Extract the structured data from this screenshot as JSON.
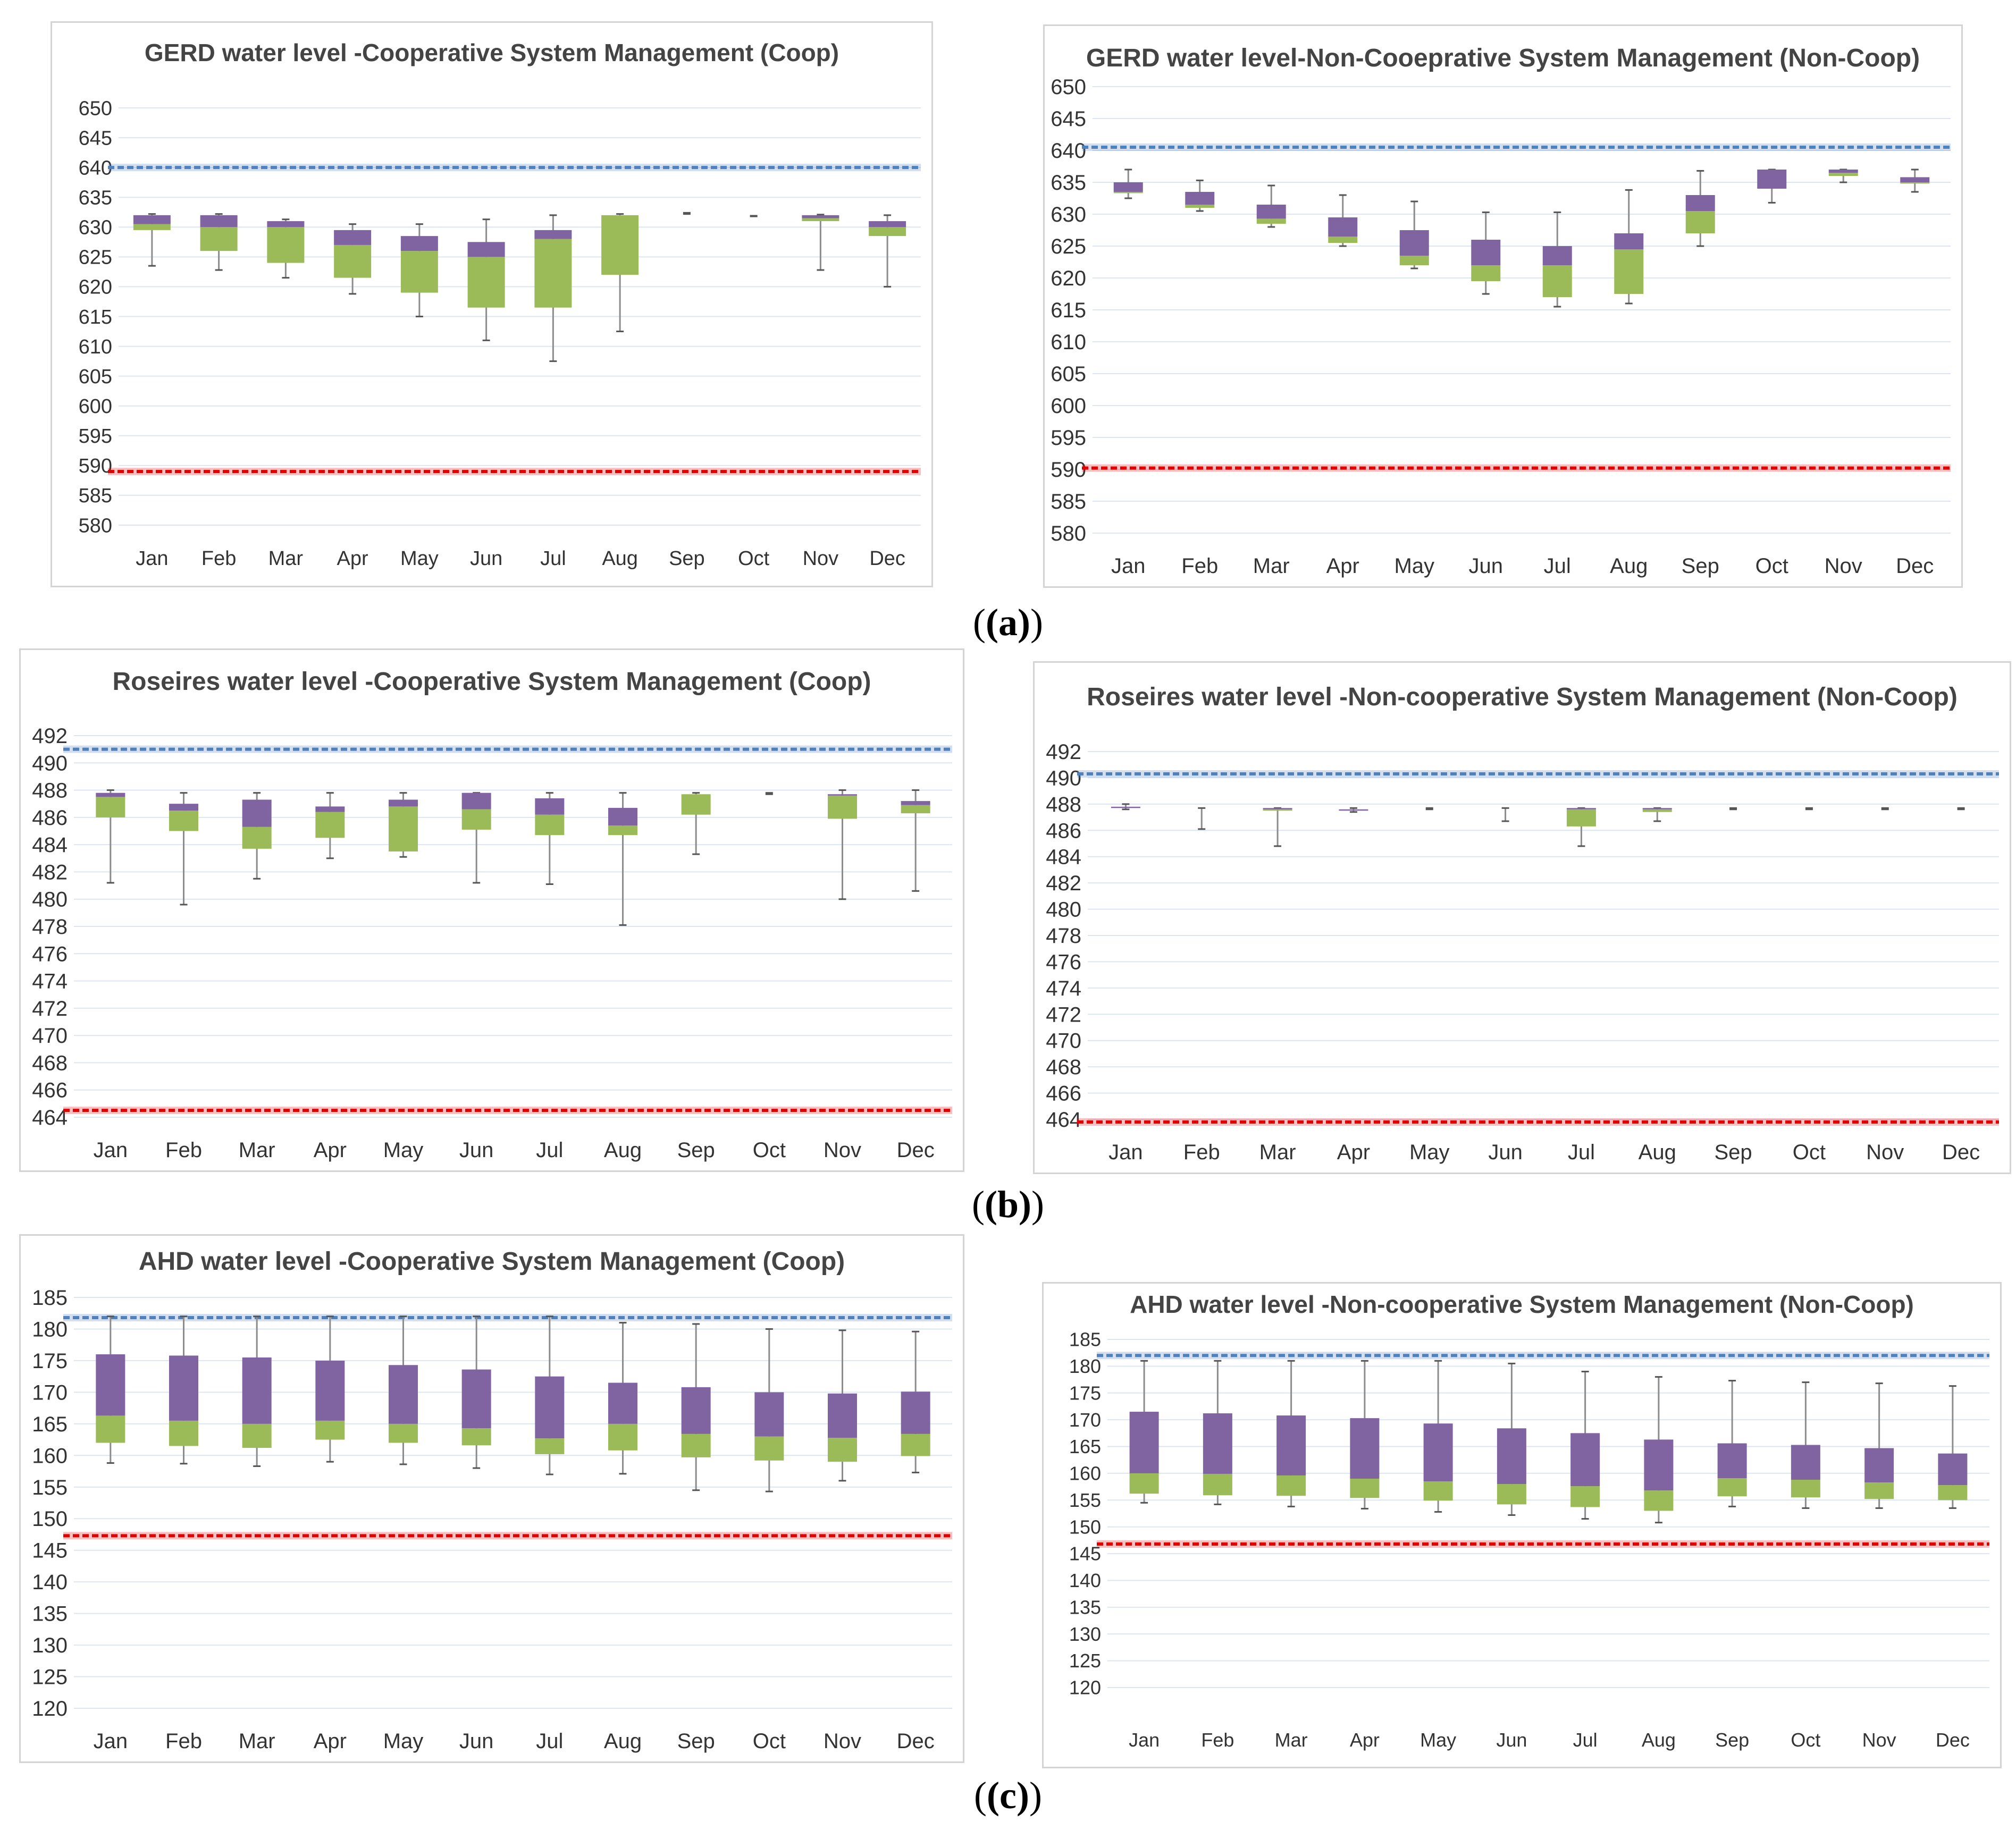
{
  "colors": {
    "purple": "#8064a2",
    "green": "#9bbb59",
    "grid": "#dce6f2",
    "maxLine": "#4f81bd",
    "minLine": "#e00000",
    "whisker": "#8c8c8c"
  },
  "subfigure_labels": {
    "a": "(a)",
    "b": "(b)",
    "c": "(c)"
  },
  "chart_data": [
    {
      "id": "gerd-coop",
      "type": "boxplot",
      "title": "GERD water level -Cooperative System Management (Coop)",
      "categories": [
        "Jan",
        "Feb",
        "Mar",
        "Apr",
        "May",
        "Jun",
        "Jul",
        "Aug",
        "Sep",
        "Oct",
        "Nov",
        "Dec"
      ],
      "ylim": [
        580,
        650
      ],
      "yticks": [
        580,
        585,
        590,
        595,
        600,
        605,
        610,
        615,
        620,
        625,
        630,
        635,
        640,
        645,
        650
      ],
      "max_level": 640,
      "min_level": 589,
      "boxes": [
        {
          "min": 623.5,
          "q1": 629.5,
          "median": 630.5,
          "q3": 632,
          "max": 632.2
        },
        {
          "min": 622.8,
          "q1": 626,
          "median": 630,
          "q3": 632,
          "max": 632.2
        },
        {
          "min": 621.5,
          "q1": 624,
          "median": 630,
          "q3": 631,
          "max": 631.3
        },
        {
          "min": 618.8,
          "q1": 621.5,
          "median": 627,
          "q3": 629.5,
          "max": 630.5
        },
        {
          "min": 615,
          "q1": 619,
          "median": 626,
          "q3": 628.5,
          "max": 630.5
        },
        {
          "min": 611,
          "q1": 616.5,
          "median": 625,
          "q3": 627.5,
          "max": 631.3
        },
        {
          "min": 607.5,
          "q1": 616.5,
          "median": 628,
          "q3": 629.5,
          "max": 632
        },
        {
          "min": 612.5,
          "q1": 622,
          "median": 632,
          "q3": 632,
          "max": 632.2
        },
        {
          "min": 632.2,
          "q1": 632.2,
          "median": 632.2,
          "q3": 632.2,
          "max": 632.4
        },
        {
          "min": 631.8,
          "q1": 631.8,
          "median": 631.8,
          "q3": 631.8,
          "max": 631.9
        },
        {
          "min": 622.8,
          "q1": 631,
          "median": 631.5,
          "q3": 632,
          "max": 632.1
        },
        {
          "min": 620,
          "q1": 628.5,
          "median": 630,
          "q3": 631,
          "max": 632
        }
      ]
    },
    {
      "id": "gerd-noncoop",
      "type": "boxplot",
      "title": "GERD water level-Non-Cooeprative System Management (Non-Coop)",
      "categories": [
        "Jan",
        "Feb",
        "Mar",
        "Apr",
        "May",
        "Jun",
        "Jul",
        "Aug",
        "Sep",
        "Oct",
        "Nov",
        "Dec"
      ],
      "ylim": [
        580,
        650
      ],
      "yticks": [
        580,
        585,
        590,
        595,
        600,
        605,
        610,
        615,
        620,
        625,
        630,
        635,
        640,
        645,
        650
      ],
      "max_level": 640.5,
      "min_level": 590.2,
      "boxes": [
        {
          "min": 632.5,
          "q1": 633.3,
          "median": 633.5,
          "q3": 635,
          "max": 637
        },
        {
          "min": 630.5,
          "q1": 631,
          "median": 631.5,
          "q3": 633.5,
          "max": 635.3
        },
        {
          "min": 628,
          "q1": 628.5,
          "median": 629.3,
          "q3": 631.5,
          "max": 634.5
        },
        {
          "min": 625,
          "q1": 625.5,
          "median": 626.5,
          "q3": 629.5,
          "max": 633
        },
        {
          "min": 621.5,
          "q1": 622,
          "median": 623.5,
          "q3": 627.5,
          "max": 632
        },
        {
          "min": 617.5,
          "q1": 619.5,
          "median": 622,
          "q3": 626,
          "max": 630.3
        },
        {
          "min": 615.5,
          "q1": 617,
          "median": 622,
          "q3": 625,
          "max": 630.3
        },
        {
          "min": 616,
          "q1": 617.5,
          "median": 624.5,
          "q3": 627,
          "max": 633.8
        },
        {
          "min": 625,
          "q1": 627,
          "median": 630.5,
          "q3": 633,
          "max": 636.8
        },
        {
          "min": 631.8,
          "q1": 634,
          "median": 634,
          "q3": 637,
          "max": 637
        },
        {
          "min": 635,
          "q1": 636,
          "median": 636.5,
          "q3": 637,
          "max": 637
        },
        {
          "min": 633.5,
          "q1": 634.8,
          "median": 635,
          "q3": 635.8,
          "max": 637
        }
      ]
    },
    {
      "id": "roseires-coop",
      "type": "boxplot",
      "title": "Roseires water level -Cooperative System Management (Coop)",
      "categories": [
        "Jan",
        "Feb",
        "Mar",
        "Apr",
        "May",
        "Jun",
        "Jul",
        "Aug",
        "Sep",
        "Oct",
        "Nov",
        "Dec"
      ],
      "ylim": [
        464,
        492
      ],
      "yticks": [
        464,
        466,
        468,
        470,
        472,
        474,
        476,
        478,
        480,
        482,
        484,
        486,
        488,
        490,
        492
      ],
      "max_level": 491,
      "min_level": 464.5,
      "boxes": [
        {
          "min": 481.2,
          "q1": 486,
          "median": 487.5,
          "q3": 487.8,
          "max": 488
        },
        {
          "min": 479.6,
          "q1": 485,
          "median": 486.5,
          "q3": 487,
          "max": 487.8
        },
        {
          "min": 481.5,
          "q1": 483.7,
          "median": 485.3,
          "q3": 487.3,
          "max": 487.8
        },
        {
          "min": 483,
          "q1": 484.5,
          "median": 486.4,
          "q3": 486.8,
          "max": 487.8
        },
        {
          "min": 483.1,
          "q1": 483.5,
          "median": 486.8,
          "q3": 487.3,
          "max": 487.8
        },
        {
          "min": 481.2,
          "q1": 485.1,
          "median": 486.6,
          "q3": 487.8,
          "max": 487.8
        },
        {
          "min": 481.1,
          "q1": 484.7,
          "median": 486.2,
          "q3": 487.4,
          "max": 487.8
        },
        {
          "min": 478.1,
          "q1": 484.7,
          "median": 485.4,
          "q3": 486.7,
          "max": 487.8
        },
        {
          "min": 483.3,
          "q1": 486.2,
          "median": 487.7,
          "q3": 487.7,
          "max": 487.8
        },
        {
          "min": 487.7,
          "q1": 487.7,
          "median": 487.7,
          "q3": 487.7,
          "max": 487.8
        },
        {
          "min": 480,
          "q1": 485.9,
          "median": 487.6,
          "q3": 487.7,
          "max": 488
        },
        {
          "min": 480.6,
          "q1": 486.3,
          "median": 486.9,
          "q3": 487.2,
          "max": 488
        }
      ]
    },
    {
      "id": "roseires-noncoop",
      "type": "boxplot",
      "title": "Roseires water level -Non-cooperative System Management (Non-Coop)",
      "categories": [
        "Jan",
        "Feb",
        "Mar",
        "Apr",
        "May",
        "Jun",
        "Jul",
        "Aug",
        "Sep",
        "Oct",
        "Nov",
        "Dec"
      ],
      "ylim": [
        464,
        492
      ],
      "yticks": [
        464,
        466,
        468,
        470,
        472,
        474,
        476,
        478,
        480,
        482,
        484,
        486,
        488,
        490,
        492
      ],
      "max_level": 490.3,
      "min_level": 463.8,
      "boxes": [
        {
          "min": 487.6,
          "q1": 487.7,
          "median": 487.7,
          "q3": 487.8,
          "max": 488
        },
        {
          "min": 486.1,
          "q1": 487.7,
          "median": 487.7,
          "q3": 487.7,
          "max": 487.7
        },
        {
          "min": 484.8,
          "q1": 487.5,
          "median": 487.6,
          "q3": 487.7,
          "max": 487.7
        },
        {
          "min": 487.4,
          "q1": 487.5,
          "median": 487.5,
          "q3": 487.6,
          "max": 487.7
        },
        {
          "min": 487.6,
          "q1": 487.7,
          "median": 487.7,
          "q3": 487.7,
          "max": 487.7
        },
        {
          "min": 486.7,
          "q1": 487.7,
          "median": 487.7,
          "q3": 487.7,
          "max": 487.7
        },
        {
          "min": 484.8,
          "q1": 486.3,
          "median": 487.6,
          "q3": 487.7,
          "max": 487.7
        },
        {
          "min": 486.7,
          "q1": 487.4,
          "median": 487.6,
          "q3": 487.7,
          "max": 487.7
        },
        {
          "min": 487.6,
          "q1": 487.7,
          "median": 487.7,
          "q3": 487.7,
          "max": 487.7
        },
        {
          "min": 487.6,
          "q1": 487.7,
          "median": 487.7,
          "q3": 487.7,
          "max": 487.7
        },
        {
          "min": 487.6,
          "q1": 487.7,
          "median": 487.7,
          "q3": 487.7,
          "max": 487.7
        },
        {
          "min": 487.6,
          "q1": 487.7,
          "median": 487.7,
          "q3": 487.7,
          "max": 487.7
        }
      ]
    },
    {
      "id": "ahd-coop",
      "type": "boxplot",
      "title": "AHD water level -Cooperative System Management (Coop)",
      "categories": [
        "Jan",
        "Feb",
        "Mar",
        "Apr",
        "May",
        "Jun",
        "Jul",
        "Aug",
        "Sep",
        "Oct",
        "Nov",
        "Dec"
      ],
      "ylim": [
        120,
        185
      ],
      "yticks": [
        120,
        125,
        130,
        135,
        140,
        145,
        150,
        155,
        160,
        165,
        170,
        175,
        180,
        185
      ],
      "max_level": 181.8,
      "min_level": 147.3,
      "boxes": [
        {
          "min": 158.8,
          "q1": 162,
          "median": 166.3,
          "q3": 176,
          "max": 182
        },
        {
          "min": 158.7,
          "q1": 161.5,
          "median": 165.5,
          "q3": 175.8,
          "max": 182
        },
        {
          "min": 158.3,
          "q1": 161.2,
          "median": 165,
          "q3": 175.5,
          "max": 182
        },
        {
          "min": 159,
          "q1": 162.5,
          "median": 165.5,
          "q3": 175,
          "max": 182
        },
        {
          "min": 158.6,
          "q1": 162,
          "median": 165,
          "q3": 174.3,
          "max": 182
        },
        {
          "min": 158,
          "q1": 161.6,
          "median": 164.3,
          "q3": 173.6,
          "max": 182
        },
        {
          "min": 157,
          "q1": 160.2,
          "median": 162.7,
          "q3": 172.5,
          "max": 182
        },
        {
          "min": 157.1,
          "q1": 160.8,
          "median": 165,
          "q3": 171.5,
          "max": 181
        },
        {
          "min": 154.5,
          "q1": 159.7,
          "median": 163.4,
          "q3": 170.8,
          "max": 180.8
        },
        {
          "min": 154.3,
          "q1": 159.2,
          "median": 163,
          "q3": 170,
          "max": 180
        },
        {
          "min": 156,
          "q1": 159,
          "median": 162.8,
          "q3": 169.8,
          "max": 179.8
        },
        {
          "min": 157.3,
          "q1": 159.9,
          "median": 163.4,
          "q3": 170.1,
          "max": 179.6
        }
      ]
    },
    {
      "id": "ahd-noncoop",
      "type": "boxplot",
      "title": "AHD water level -Non-cooperative System Management (Non-Coop)",
      "categories": [
        "Jan",
        "Feb",
        "Mar",
        "Apr",
        "May",
        "Jun",
        "Jul",
        "Aug",
        "Sep",
        "Oct",
        "Nov",
        "Dec"
      ],
      "ylim": [
        120,
        185
      ],
      "yticks": [
        120,
        125,
        130,
        135,
        140,
        145,
        150,
        155,
        160,
        165,
        170,
        175,
        180,
        185
      ],
      "max_level": 182,
      "min_level": 146.8,
      "boxes": [
        {
          "min": 154.5,
          "q1": 156.2,
          "median": 160,
          "q3": 171.5,
          "max": 181
        },
        {
          "min": 154.2,
          "q1": 155.9,
          "median": 159.9,
          "q3": 171.2,
          "max": 181
        },
        {
          "min": 153.8,
          "q1": 155.8,
          "median": 159.6,
          "q3": 170.8,
          "max": 181
        },
        {
          "min": 153.4,
          "q1": 155.4,
          "median": 159,
          "q3": 170.3,
          "max": 181
        },
        {
          "min": 152.8,
          "q1": 154.9,
          "median": 158.5,
          "q3": 169.3,
          "max": 181
        },
        {
          "min": 152.2,
          "q1": 154.2,
          "median": 158,
          "q3": 168.4,
          "max": 180.5
        },
        {
          "min": 151.5,
          "q1": 153.7,
          "median": 157.6,
          "q3": 167.5,
          "max": 179
        },
        {
          "min": 150.8,
          "q1": 153,
          "median": 156.8,
          "q3": 166.3,
          "max": 178
        },
        {
          "min": 153.8,
          "q1": 155.7,
          "median": 159.1,
          "q3": 165.6,
          "max": 177.3
        },
        {
          "min": 153.5,
          "q1": 155.5,
          "median": 158.8,
          "q3": 165.3,
          "max": 177
        },
        {
          "min": 153.5,
          "q1": 155.2,
          "median": 158.3,
          "q3": 164.7,
          "max": 176.8
        },
        {
          "min": 153.5,
          "q1": 155,
          "median": 157.8,
          "q3": 163.7,
          "max": 176.3
        }
      ]
    }
  ]
}
